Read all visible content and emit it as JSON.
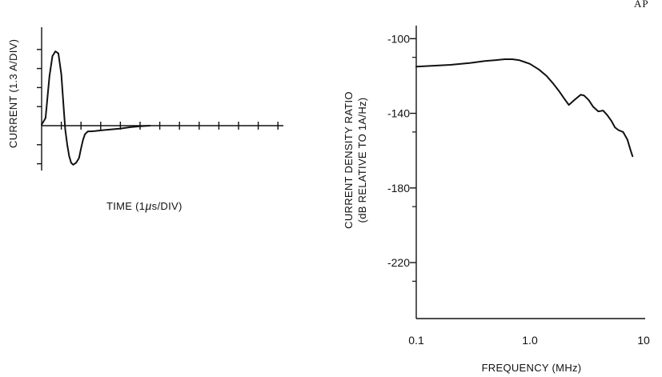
{
  "page": {
    "corner_label": "AP"
  },
  "chart_data": [
    {
      "type": "line",
      "xlabel_parts": {
        "pre": "TIME (1",
        "mu": "μ",
        "post": "s/DIV)"
      },
      "ylabel": "CURRENT (1.3 A/DIV)",
      "x_divisions": 12,
      "y_divisions_above": 4,
      "y_divisions_below": 2,
      "grid": false,
      "series": [
        {
          "x": [
            0,
            0.2,
            0.4,
            0.55,
            0.7,
            0.85,
            1.0,
            1.1,
            1.2,
            1.3,
            1.4,
            1.5,
            1.6,
            1.75,
            1.9,
            2.0,
            2.1,
            2.2,
            2.35,
            2.5,
            2.7,
            3.0,
            3.5,
            4.0,
            4.5,
            5.0,
            5.5
          ],
          "y": [
            0.05,
            0.4,
            2.6,
            3.65,
            3.9,
            3.8,
            2.7,
            1.2,
            -0.2,
            -1.0,
            -1.6,
            -1.95,
            -2.05,
            -1.95,
            -1.7,
            -1.2,
            -0.75,
            -0.45,
            -0.3,
            -0.3,
            -0.28,
            -0.25,
            -0.2,
            -0.15,
            -0.08,
            -0.03,
            0
          ]
        }
      ]
    },
    {
      "type": "line",
      "xscale": "log",
      "xlabel": "FREQUENCY (MHz)",
      "ylabel_lines": [
        "CURRENT DENSITY RATIO",
        "(dB RELATIVE TO 1A/Hz)"
      ],
      "x_ticks": [
        "0.1",
        "1.0",
        "10"
      ],
      "x_tick_values": [
        0.1,
        1,
        10
      ],
      "y_ticks": [
        "-100",
        "-140",
        "-180",
        "-220"
      ],
      "y_tick_values": [
        -100,
        -140,
        -180,
        -220
      ],
      "ylim": [
        -250,
        -93
      ],
      "xlim": [
        0.1,
        10
      ],
      "grid": false,
      "series": [
        {
          "x": [
            0.1,
            0.2,
            0.3,
            0.4,
            0.5,
            0.6,
            0.7,
            0.8,
            0.9,
            1.0,
            1.2,
            1.4,
            1.6,
            1.8,
            2.0,
            2.2,
            2.5,
            2.8,
            3.0,
            3.3,
            3.6,
            4.0,
            4.4,
            4.8,
            5.2,
            5.6,
            6.0,
            6.6,
            7.2,
            7.7,
            8.0
          ],
          "y": [
            -115,
            -114,
            -113,
            -112,
            -111.5,
            -111,
            -111,
            -111.5,
            -112.5,
            -113.5,
            -116.5,
            -120,
            -124,
            -128,
            -132,
            -135.5,
            -132.5,
            -130,
            -130.5,
            -133,
            -136.5,
            -139,
            -138.5,
            -141,
            -144,
            -147.5,
            -149,
            -150,
            -154,
            -160,
            -163
          ]
        }
      ]
    }
  ]
}
